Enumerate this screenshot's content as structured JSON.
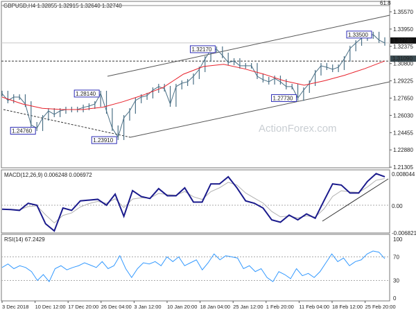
{
  "chart_data": {
    "type": "line",
    "title": "GBPUSD,H4 1.32855 1.32915 1.32640 1.32740",
    "watermark": "ActionForex.com",
    "fib_label": "61.8",
    "price_axis": {
      "ticks": [
        "1.35570",
        "1.33950",
        "1.32375",
        "1.30800",
        "1.29225",
        "1.27650",
        "1.26030",
        "1.24455",
        "1.22880",
        "1.21305"
      ],
      "range": [
        1.21305,
        1.3557
      ]
    },
    "current_price": "1.32740",
    "level_price": "1.31090",
    "annotations": [
      {
        "text": "1.33500",
        "price": 1.335,
        "index": 64
      },
      {
        "text": "1.32170",
        "price": 1.3217,
        "index": 37
      },
      {
        "text": "1.28140",
        "price": 1.2814,
        "index": 17
      },
      {
        "text": "1.27730",
        "price": 1.2773,
        "index": 51
      },
      {
        "text": "1.24760",
        "price": 1.2476,
        "index": 6
      },
      {
        "text": "1.23910",
        "price": 1.2391,
        "index": 20
      }
    ],
    "price_close": [
      1.2814,
      1.2751,
      1.2782,
      1.2782,
      1.2719,
      1.253,
      1.2499,
      1.2593,
      1.2656,
      1.2625,
      1.2656,
      1.2669,
      1.2669,
      1.2669,
      1.2688,
      1.27,
      1.2719,
      1.2814,
      1.2656,
      1.2499,
      1.2417,
      1.2593,
      1.2656,
      1.2751,
      1.2782,
      1.2795,
      1.2845,
      1.2877,
      1.2858,
      1.2719,
      1.2877,
      1.2908,
      1.2921,
      1.2971,
      1.3034,
      1.3129,
      1.321,
      1.3217,
      1.316,
      1.3097,
      1.311,
      1.3066,
      1.3066,
      1.3066,
      1.2971,
      1.294,
      1.2921,
      1.2952,
      1.2921,
      1.2877,
      1.2877,
      1.2773,
      1.2845,
      1.2908,
      1.3003,
      1.3066,
      1.3053,
      1.3034,
      1.3053,
      1.3129,
      1.3223,
      1.3273,
      1.3318,
      1.3336,
      1.335,
      1.33,
      1.3274
    ],
    "moving_average": [
      1.2782,
      1.272,
      1.268,
      1.2669,
      1.2669,
      1.269,
      1.274,
      1.28,
      1.287,
      1.299,
      1.306,
      1.308,
      1.304,
      1.299,
      1.293,
      1.289,
      1.293,
      1.298,
      1.304,
      1.311
    ],
    "macd": {
      "label": "MACD(12,26,9) 0.006248 0.006972",
      "axis": [
        "0.008044",
        "0.00",
        "-0.006821"
      ],
      "range": [
        -0.006821,
        0.008044
      ],
      "values": [
        -0.001,
        -0.0011,
        -0.0013,
        0.0005,
        0.0,
        -0.0047,
        -0.0065,
        -0.0007,
        -0.0013,
        0.0011,
        0.0013,
        0.0015,
        0.0,
        0.0028,
        -0.0028,
        0.0037,
        0.0022,
        0.0017,
        0.0042,
        0.0024,
        0.0024,
        0.0044,
        0.0008,
        0.0008,
        0.0054,
        0.0054,
        0.0072,
        0.0044,
        0.0011,
        0.0005,
        -0.0007,
        -0.0037,
        -0.0043,
        -0.0025,
        -0.0037,
        -0.0022,
        -0.0033,
        0.0011,
        0.0054,
        0.0051,
        0.0031,
        0.0031,
        0.006,
        0.008,
        0.0072
      ]
    },
    "rsi": {
      "label": "RSI(14) 67.2429",
      "axis": [
        "100",
        "70",
        "30",
        "0"
      ],
      "range": [
        0,
        100
      ],
      "values": [
        52,
        58,
        50,
        55,
        52,
        45,
        30,
        40,
        28,
        50,
        55,
        48,
        52,
        55,
        60,
        56,
        52,
        62,
        50,
        55,
        72,
        50,
        35,
        50,
        60,
        58,
        62,
        55,
        70,
        62,
        70,
        55,
        60,
        65,
        48,
        60,
        75,
        65,
        72,
        70,
        68,
        50,
        55,
        45,
        50,
        35,
        28,
        45,
        40,
        33,
        50,
        38,
        42,
        35,
        45,
        60,
        75,
        62,
        68,
        55,
        62,
        65,
        75,
        80,
        78,
        67
      ]
    },
    "x_ticks": [
      "3 Dec 2018",
      "10 Dec 12:00",
      "17 Dec 20:00",
      "26 Dec 04:00",
      "3 Jan 12:00",
      "10 Jan 20:00",
      "18 Jan 04:00",
      "25 Jan 12:00",
      "1 Feb 20:00",
      "11 Feb 04:00",
      "18 Feb 12:00",
      "25 Feb 20:00"
    ],
    "colors": {
      "price": "#4a6f85",
      "ma": "#e8202a",
      "macd": "#1a1a8c",
      "signal": "#b0b0b0",
      "rsi": "#3399ff",
      "label_border": "#2b2bb5"
    }
  }
}
